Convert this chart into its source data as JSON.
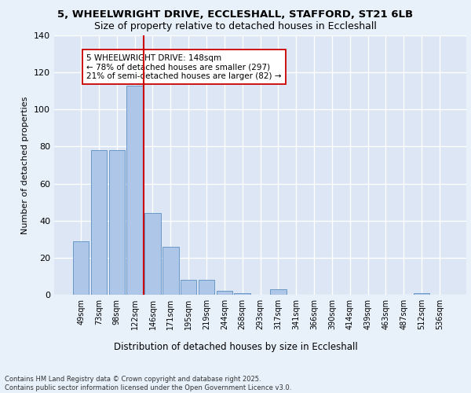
{
  "title_line1": "5, WHEELWRIGHT DRIVE, ECCLESHALL, STAFFORD, ST21 6LB",
  "title_line2": "Size of property relative to detached houses in Eccleshall",
  "xlabel": "Distribution of detached houses by size in Eccleshall",
  "ylabel": "Number of detached properties",
  "categories": [
    "49sqm",
    "73sqm",
    "98sqm",
    "122sqm",
    "146sqm",
    "171sqm",
    "195sqm",
    "219sqm",
    "244sqm",
    "268sqm",
    "293sqm",
    "317sqm",
    "341sqm",
    "366sqm",
    "390sqm",
    "414sqm",
    "439sqm",
    "463sqm",
    "487sqm",
    "512sqm",
    "536sqm"
  ],
  "values": [
    29,
    78,
    78,
    113,
    44,
    26,
    8,
    8,
    2,
    1,
    0,
    3,
    0,
    0,
    0,
    0,
    0,
    0,
    0,
    1,
    0
  ],
  "bar_color": "#aec6e8",
  "bar_edge_color": "#5a8fc2",
  "vline_color": "#cc0000",
  "annotation_text": "5 WHEELWRIGHT DRIVE: 148sqm\n← 78% of detached houses are smaller (297)\n21% of semi-detached houses are larger (82) →",
  "annotation_box_color": "#ffffff",
  "annotation_box_edge": "#cc0000",
  "plot_bg_color": "#dce6f5",
  "fig_bg_color": "#e8f0fa",
  "grid_color": "#ffffff",
  "footer": "Contains HM Land Registry data © Crown copyright and database right 2025.\nContains public sector information licensed under the Open Government Licence v3.0.",
  "ylim": [
    0,
    140
  ],
  "yticks": [
    0,
    20,
    40,
    60,
    80,
    100,
    120,
    140
  ]
}
